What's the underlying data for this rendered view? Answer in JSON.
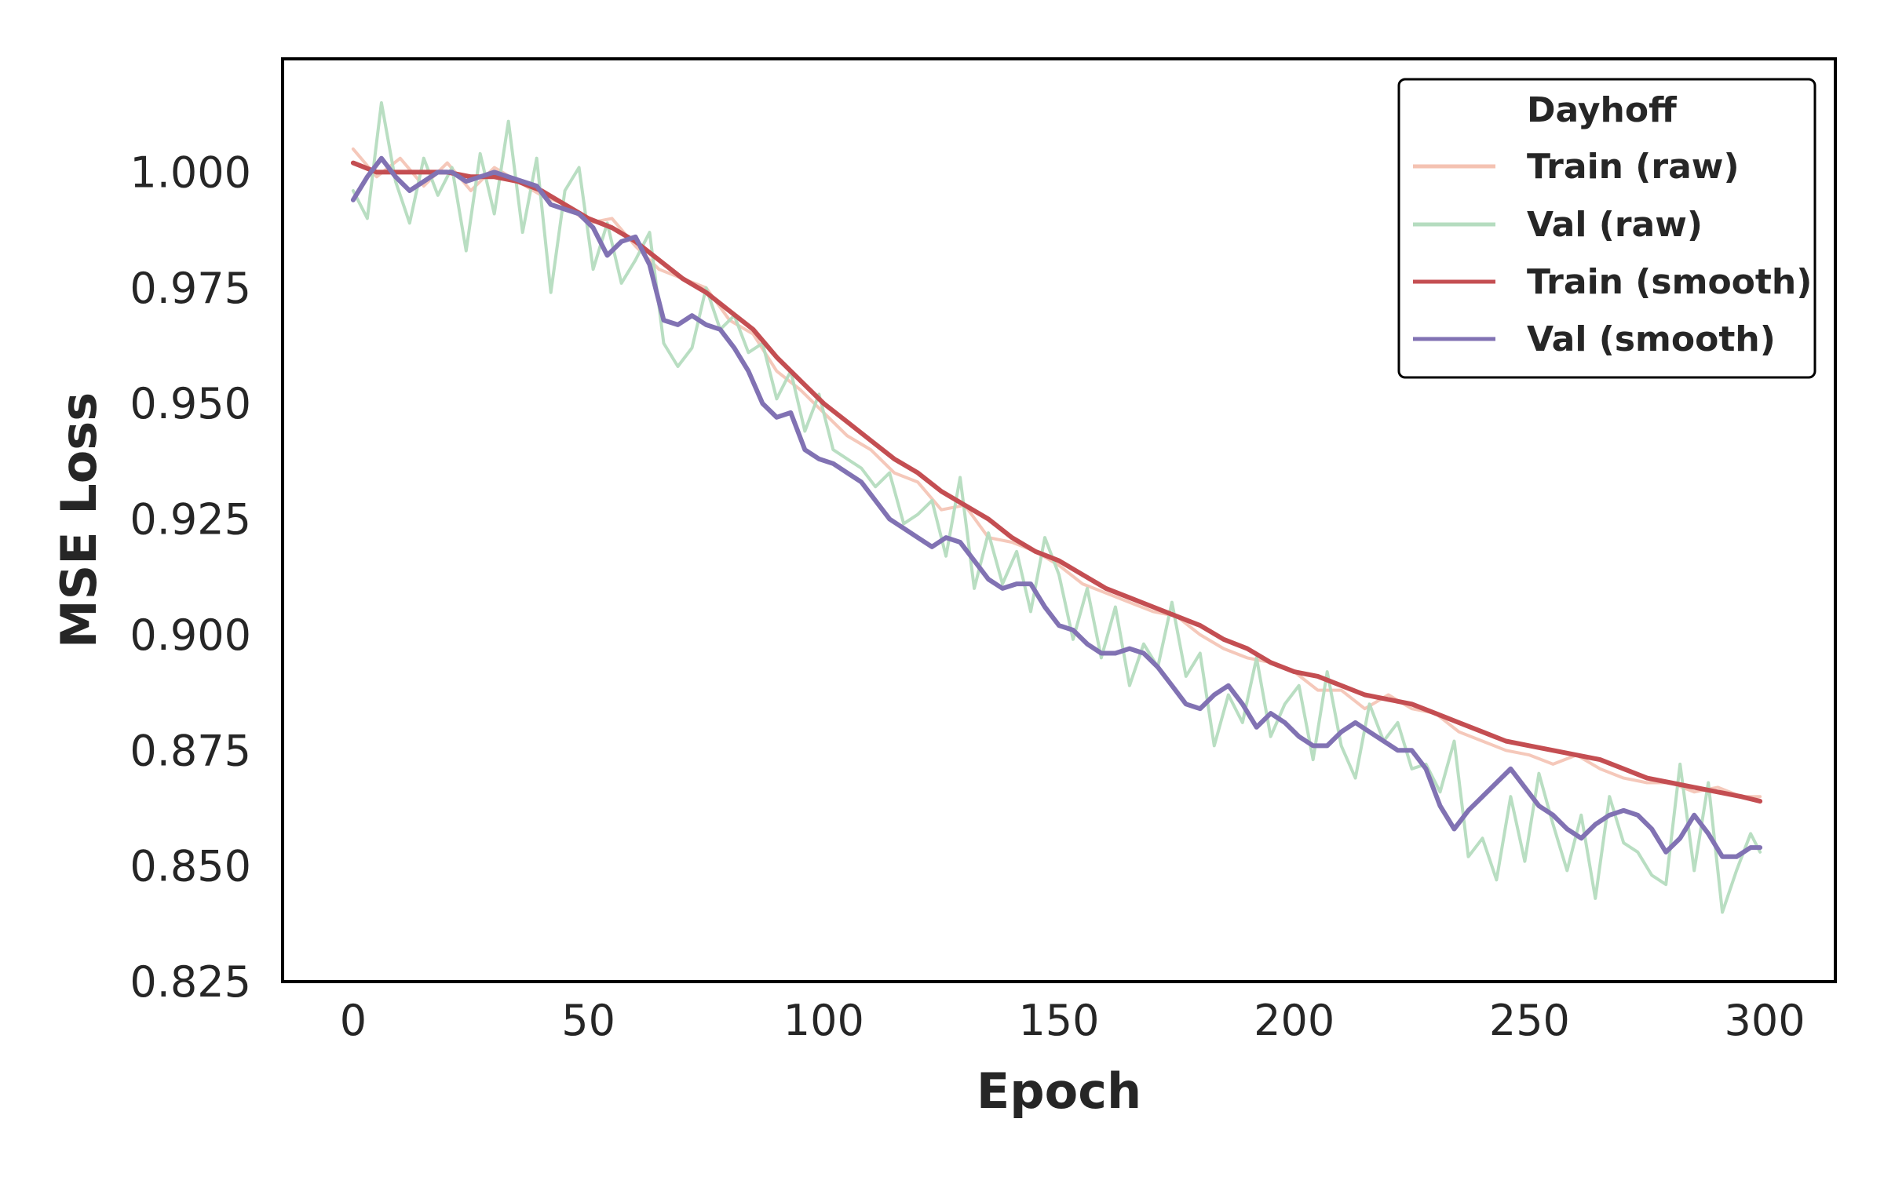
{
  "chart_data": {
    "type": "line",
    "title": "",
    "xlabel": "Epoch",
    "ylabel": "MSE Loss",
    "xlim": [
      -15,
      315
    ],
    "ylim": [
      0.825,
      1.0245
    ],
    "x_ticks": [
      0,
      50,
      100,
      150,
      200,
      250,
      300
    ],
    "y_ticks": [
      0.825,
      0.85,
      0.875,
      0.9,
      0.925,
      0.95,
      0.975,
      1.0
    ],
    "x_tick_labels": [
      "0",
      "50",
      "100",
      "150",
      "200",
      "250",
      "300"
    ],
    "y_tick_labels": [
      "0.825",
      "0.850",
      "0.875",
      "0.900",
      "0.925",
      "0.950",
      "0.975",
      "1.000"
    ],
    "grid": false,
    "legend": {
      "title": "Dayhoff",
      "position": "top-right",
      "entries": [
        "Train (raw)",
        "Val (raw)",
        "Train (smooth)",
        "Val (smooth)"
      ]
    },
    "colors": {
      "train_raw": "#f4c2b2",
      "val_raw": "#b5dcbf",
      "train_smooth": "#c44e52",
      "val_smooth": "#8172b3"
    },
    "series": [
      {
        "name": "Train (raw)",
        "x": [
          0,
          5,
          10,
          15,
          20,
          25,
          30,
          35,
          40,
          45,
          50,
          55,
          60,
          65,
          70,
          75,
          80,
          85,
          90,
          95,
          100,
          105,
          110,
          115,
          120,
          125,
          130,
          135,
          140,
          145,
          150,
          155,
          160,
          165,
          170,
          175,
          180,
          185,
          190,
          195,
          200,
          205,
          210,
          215,
          220,
          225,
          230,
          235,
          240,
          245,
          250,
          255,
          260,
          265,
          270,
          275,
          280,
          285,
          290,
          295,
          299
        ],
        "values": [
          1.005,
          0.999,
          1.003,
          0.997,
          1.002,
          0.996,
          1.001,
          0.998,
          0.995,
          0.993,
          0.989,
          0.99,
          0.984,
          0.979,
          0.977,
          0.975,
          0.968,
          0.965,
          0.957,
          0.953,
          0.948,
          0.943,
          0.94,
          0.935,
          0.933,
          0.927,
          0.928,
          0.921,
          0.92,
          0.918,
          0.915,
          0.911,
          0.909,
          0.907,
          0.905,
          0.904,
          0.9,
          0.897,
          0.895,
          0.894,
          0.892,
          0.888,
          0.888,
          0.884,
          0.887,
          0.884,
          0.883,
          0.879,
          0.877,
          0.875,
          0.874,
          0.872,
          0.874,
          0.871,
          0.869,
          0.868,
          0.868,
          0.866,
          0.867,
          0.865,
          0.865
        ]
      },
      {
        "name": "Val (raw)",
        "x": [
          0,
          3,
          6,
          9,
          12,
          15,
          18,
          21,
          24,
          27,
          30,
          33,
          36,
          39,
          42,
          45,
          48,
          51,
          54,
          57,
          60,
          63,
          66,
          69,
          72,
          75,
          78,
          81,
          84,
          87,
          90,
          93,
          96,
          99,
          102,
          105,
          108,
          111,
          114,
          117,
          120,
          123,
          126,
          129,
          132,
          135,
          138,
          141,
          144,
          147,
          150,
          153,
          156,
          159,
          162,
          165,
          168,
          171,
          174,
          177,
          180,
          183,
          186,
          189,
          192,
          195,
          198,
          201,
          204,
          207,
          210,
          213,
          216,
          219,
          222,
          225,
          228,
          231,
          234,
          237,
          240,
          243,
          246,
          249,
          252,
          255,
          258,
          261,
          264,
          267,
          270,
          273,
          276,
          279,
          282,
          285,
          288,
          291,
          294,
          297,
          299
        ],
        "values": [
          0.996,
          0.99,
          1.015,
          0.998,
          0.989,
          1.003,
          0.995,
          1.001,
          0.983,
          1.004,
          0.991,
          1.011,
          0.987,
          1.003,
          0.974,
          0.996,
          1.001,
          0.979,
          0.989,
          0.976,
          0.981,
          0.987,
          0.963,
          0.958,
          0.962,
          0.975,
          0.966,
          0.969,
          0.961,
          0.963,
          0.951,
          0.957,
          0.944,
          0.952,
          0.94,
          0.938,
          0.936,
          0.932,
          0.935,
          0.924,
          0.926,
          0.929,
          0.917,
          0.934,
          0.91,
          0.922,
          0.911,
          0.918,
          0.905,
          0.921,
          0.913,
          0.899,
          0.91,
          0.895,
          0.906,
          0.889,
          0.898,
          0.893,
          0.907,
          0.891,
          0.896,
          0.876,
          0.887,
          0.881,
          0.895,
          0.878,
          0.885,
          0.889,
          0.873,
          0.892,
          0.876,
          0.869,
          0.885,
          0.877,
          0.881,
          0.871,
          0.872,
          0.866,
          0.877,
          0.852,
          0.856,
          0.847,
          0.865,
          0.851,
          0.87,
          0.859,
          0.849,
          0.861,
          0.843,
          0.865,
          0.855,
          0.853,
          0.848,
          0.846,
          0.872,
          0.849,
          0.868,
          0.84,
          0.849,
          0.857,
          0.853
        ]
      },
      {
        "name": "Train (smooth)",
        "x": [
          0,
          5,
          10,
          15,
          20,
          25,
          30,
          35,
          40,
          45,
          50,
          55,
          60,
          65,
          70,
          75,
          80,
          85,
          90,
          95,
          100,
          105,
          110,
          115,
          120,
          125,
          130,
          135,
          140,
          145,
          150,
          155,
          160,
          165,
          170,
          175,
          180,
          185,
          190,
          195,
          200,
          205,
          210,
          215,
          220,
          225,
          230,
          235,
          240,
          245,
          250,
          255,
          260,
          265,
          270,
          275,
          280,
          285,
          290,
          295,
          299
        ],
        "values": [
          1.002,
          1.0,
          1.0,
          1.0,
          1.0,
          0.999,
          0.999,
          0.998,
          0.996,
          0.993,
          0.99,
          0.988,
          0.985,
          0.981,
          0.977,
          0.974,
          0.97,
          0.966,
          0.96,
          0.955,
          0.95,
          0.946,
          0.942,
          0.938,
          0.935,
          0.931,
          0.928,
          0.925,
          0.921,
          0.918,
          0.916,
          0.913,
          0.91,
          0.908,
          0.906,
          0.904,
          0.902,
          0.899,
          0.897,
          0.894,
          0.892,
          0.891,
          0.889,
          0.887,
          0.886,
          0.885,
          0.883,
          0.881,
          0.879,
          0.877,
          0.876,
          0.875,
          0.874,
          0.873,
          0.871,
          0.869,
          0.868,
          0.867,
          0.866,
          0.865,
          0.864
        ]
      },
      {
        "name": "Val (smooth)",
        "x": [
          0,
          3,
          6,
          9,
          12,
          15,
          18,
          21,
          24,
          27,
          30,
          33,
          36,
          39,
          42,
          45,
          48,
          51,
          54,
          57,
          60,
          63,
          66,
          69,
          72,
          75,
          78,
          81,
          84,
          87,
          90,
          93,
          96,
          99,
          102,
          105,
          108,
          111,
          114,
          117,
          120,
          123,
          126,
          129,
          132,
          135,
          138,
          141,
          144,
          147,
          150,
          153,
          156,
          159,
          162,
          165,
          168,
          171,
          174,
          177,
          180,
          183,
          186,
          189,
          192,
          195,
          198,
          201,
          204,
          207,
          210,
          213,
          216,
          219,
          222,
          225,
          228,
          231,
          234,
          237,
          240,
          243,
          246,
          249,
          252,
          255,
          258,
          261,
          264,
          267,
          270,
          273,
          276,
          279,
          282,
          285,
          288,
          291,
          294,
          297,
          299
        ],
        "values": [
          0.994,
          0.999,
          1.003,
          0.999,
          0.996,
          0.998,
          1.0,
          1.0,
          0.998,
          0.999,
          1.0,
          0.999,
          0.998,
          0.997,
          0.993,
          0.992,
          0.991,
          0.988,
          0.982,
          0.985,
          0.986,
          0.98,
          0.968,
          0.967,
          0.969,
          0.967,
          0.966,
          0.962,
          0.957,
          0.95,
          0.947,
          0.948,
          0.94,
          0.938,
          0.937,
          0.935,
          0.933,
          0.929,
          0.925,
          0.923,
          0.921,
          0.919,
          0.921,
          0.92,
          0.916,
          0.912,
          0.91,
          0.911,
          0.911,
          0.906,
          0.902,
          0.901,
          0.898,
          0.896,
          0.896,
          0.897,
          0.896,
          0.893,
          0.889,
          0.885,
          0.884,
          0.887,
          0.889,
          0.885,
          0.88,
          0.883,
          0.881,
          0.878,
          0.876,
          0.876,
          0.879,
          0.881,
          0.879,
          0.877,
          0.875,
          0.875,
          0.871,
          0.863,
          0.858,
          0.862,
          0.865,
          0.868,
          0.871,
          0.867,
          0.863,
          0.861,
          0.858,
          0.856,
          0.859,
          0.861,
          0.862,
          0.861,
          0.858,
          0.853,
          0.856,
          0.861,
          0.857,
          0.852,
          0.852,
          0.854,
          0.854
        ]
      }
    ]
  }
}
